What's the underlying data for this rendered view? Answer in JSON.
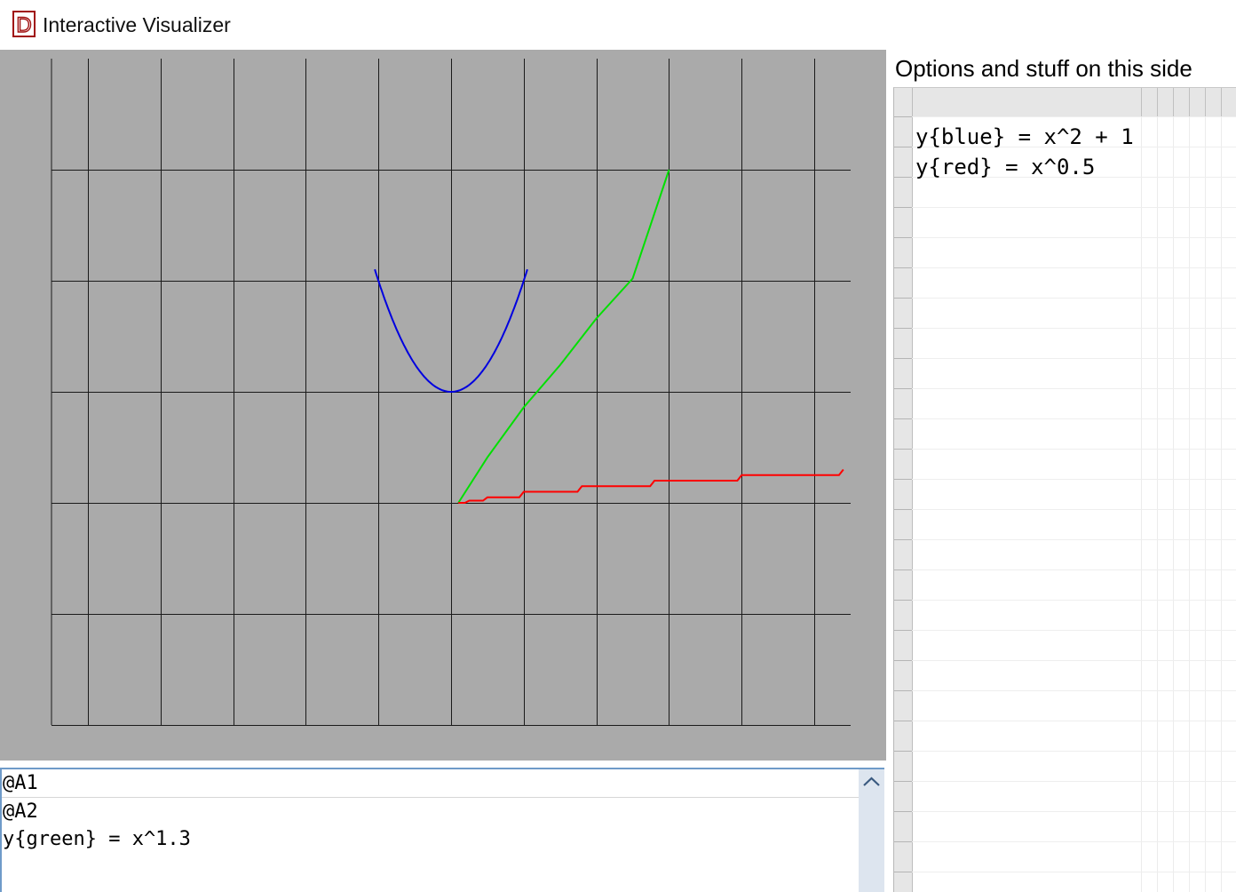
{
  "window": {
    "title": "Interactive Visualizer",
    "logo_letter": "D",
    "logo_color": "#a01010"
  },
  "plot": {
    "background": "#aaaaaa",
    "grid_color": "#1a1a1a",
    "grid": true,
    "xlim": [
      -5.5,
      5.5
    ],
    "ylim": [
      -2,
      4
    ],
    "axis_labels": "none",
    "series": [
      {
        "color": "#0000e0",
        "function": "x^2 + 1"
      },
      {
        "color": "#00e000",
        "function": "x^1.3"
      },
      {
        "color": "#ff0000",
        "function": "x^0.5"
      }
    ]
  },
  "chart_data": {
    "type": "line",
    "title": "",
    "xlabel": "",
    "ylabel": "",
    "xlim": [
      -5.5,
      5.5
    ],
    "ylim": [
      -2,
      4
    ],
    "grid": true,
    "series": [
      {
        "function": "x^2 + 1",
        "color": "#0000e0",
        "x": [
          -1,
          -0.8,
          -0.6,
          -0.4,
          -0.2,
          0,
          0.2,
          0.4,
          0.6,
          0.8,
          1
        ],
        "y": [
          2,
          1.64,
          1.36,
          1.16,
          1.04,
          1,
          1.04,
          1.16,
          1.36,
          1.64,
          2
        ]
      },
      {
        "function": "x^1.3",
        "color": "#00e000",
        "x": [
          0.1,
          0.5,
          1,
          1.5,
          2,
          2.5,
          3
        ],
        "y": [
          0,
          0.41,
          0.86,
          1.24,
          1.66,
          2.02,
          3
        ]
      },
      {
        "function": "x^0.5",
        "color": "#ff0000",
        "x": [
          0.1,
          0.25,
          0.5,
          1,
          1.8,
          2.8,
          4,
          5.4
        ],
        "y": [
          0,
          0.02,
          0.05,
          0.1,
          0.15,
          0.2,
          0.25,
          0.3
        ]
      }
    ]
  },
  "editor": {
    "lines": [
      "@A1",
      "@A2",
      "y{green} = x^1.3"
    ]
  },
  "side_panel": {
    "title": "Options and stuff on this side",
    "cells": [
      "y{blue} = x^2 + 1",
      "y{red} = x^0.5"
    ]
  }
}
